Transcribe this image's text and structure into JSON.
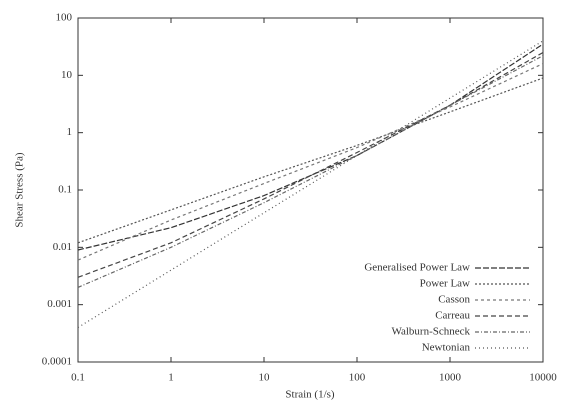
{
  "chart_data": {
    "type": "line",
    "xlabel": "Strain (1/s)",
    "ylabel": "Shear Stress (Pa)",
    "xscale": "log",
    "yscale": "log",
    "x": [
      0.1,
      1,
      10,
      100,
      1000,
      10000
    ],
    "xlim": [
      0.1,
      10000
    ],
    "xticks": [
      0.1,
      1,
      10,
      100,
      1000,
      10000
    ],
    "ylim": [
      0.0001,
      100
    ],
    "yticks": [
      0.0001,
      0.001,
      0.01,
      0.1,
      1,
      10,
      100
    ],
    "legend": "lower right",
    "series": [
      {
        "name": "Generalised Power Law",
        "color": "#333333",
        "dash": "6,2",
        "values": [
          0.009,
          0.022,
          0.08,
          0.4,
          3,
          35
        ]
      },
      {
        "name": "Power Law",
        "color": "#555555",
        "dash": "2,2",
        "values": [
          0.012,
          0.045,
          0.17,
          0.6,
          2.3,
          9
        ]
      },
      {
        "name": "Casson",
        "color": "#777777",
        "dash": "3,3",
        "values": [
          0.006,
          0.03,
          0.13,
          0.55,
          2.8,
          16
        ]
      },
      {
        "name": "Carreau",
        "color": "#444444",
        "dash": "5,3",
        "values": [
          0.003,
          0.012,
          0.07,
          0.45,
          3,
          25
        ]
      },
      {
        "name": "Walburn-Schneck",
        "color": "#666666",
        "dash": "4,2,1,2",
        "values": [
          0.002,
          0.01,
          0.06,
          0.4,
          3,
          22
        ]
      },
      {
        "name": "Newtonian",
        "color": "#555555",
        "dash": "1,3",
        "values": [
          0.0004,
          0.004,
          0.04,
          0.4,
          4,
          40
        ]
      }
    ]
  }
}
